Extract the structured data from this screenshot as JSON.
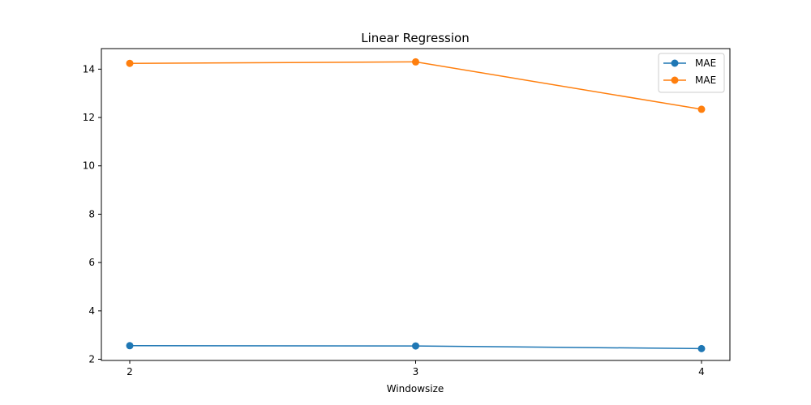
{
  "chart_data": {
    "type": "line",
    "title": "Linear Regression",
    "xlabel": "Windowsize",
    "ylabel": "",
    "x": [
      2,
      3,
      4
    ],
    "x_tick_labels": [
      "2",
      "3",
      "4"
    ],
    "ylim": [
      1.95,
      14.85
    ],
    "y_ticks": [
      2,
      4,
      6,
      8,
      10,
      12,
      14
    ],
    "y_tick_labels": [
      "2",
      "4",
      "6",
      "8",
      "10",
      "12",
      "14"
    ],
    "grid": false,
    "legend_position": "top-right",
    "series": [
      {
        "name": "MAE",
        "color": "#1f77b4",
        "marker": "circle",
        "values": [
          2.56,
          2.55,
          2.44
        ]
      },
      {
        "name": "MAE",
        "color": "#ff7f0e",
        "marker": "circle",
        "values": [
          14.24,
          14.3,
          12.34
        ]
      }
    ]
  }
}
